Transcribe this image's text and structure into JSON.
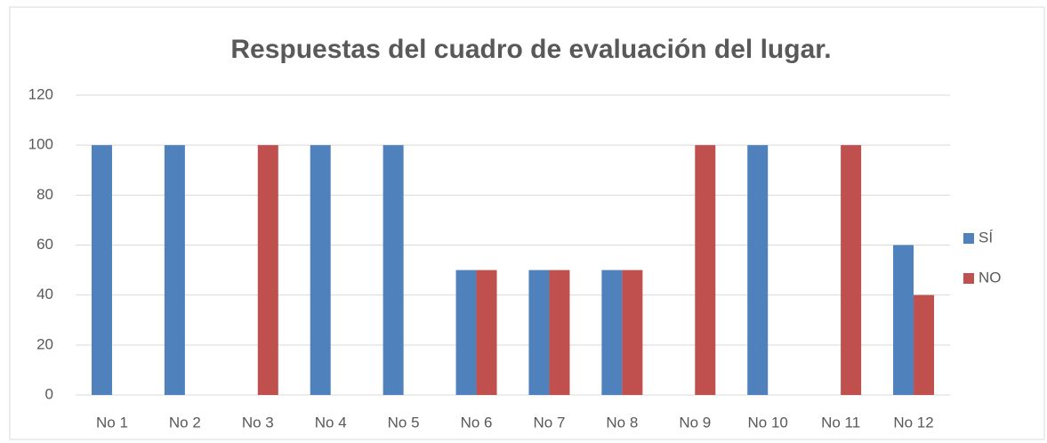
{
  "chart_data": {
    "type": "bar",
    "title": "Respuestas del cuadro de evaluación del lugar.",
    "categories": [
      "No 1",
      "No 2",
      "No 3",
      "No 4",
      "No 5",
      "No 6",
      "No 7",
      "No 8",
      "No 9",
      "No 10",
      "No 11",
      "No 12"
    ],
    "series": [
      {
        "name": "SÍ",
        "color": "#4f81bd",
        "values": [
          100,
          100,
          0,
          100,
          100,
          50,
          50,
          50,
          0,
          100,
          0,
          60
        ]
      },
      {
        "name": "NO",
        "color": "#c0504d",
        "values": [
          0,
          0,
          100,
          0,
          0,
          50,
          50,
          50,
          100,
          0,
          100,
          40
        ]
      }
    ],
    "ylim": [
      0,
      120
    ],
    "yticks": [
      0,
      20,
      40,
      60,
      80,
      100,
      120
    ],
    "grid": true,
    "legend": "right"
  }
}
